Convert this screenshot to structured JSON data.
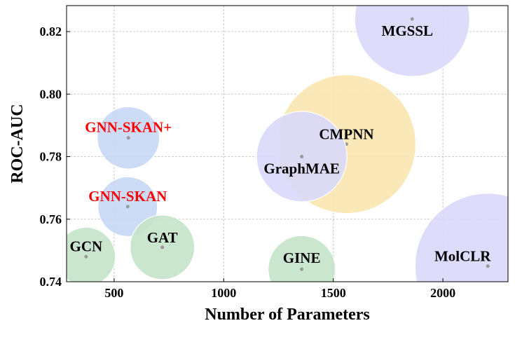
{
  "chart_data": {
    "type": "scatter",
    "title": "",
    "xlabel": "Number of Parameters",
    "ylabel": "ROC-AUC",
    "xlim": [
      283,
      2297
    ],
    "ylim": [
      0.74,
      0.8283
    ],
    "xticks": [
      500,
      1000,
      1500,
      2000
    ],
    "yticks": [
      0.74,
      0.76,
      0.78,
      0.8,
      0.82
    ],
    "xtick_labels": [
      "500",
      "1000",
      "1500",
      "2000"
    ],
    "ytick_labels": [
      "0.74",
      "0.76",
      "0.78",
      "0.80",
      "0.82"
    ],
    "grid": true,
    "points": [
      {
        "label": "GCN",
        "x": 372,
        "y": 0.748,
        "size": 17.6,
        "color": "#c5e3c9",
        "label_color": "#000000"
      },
      {
        "label": "GNN-SKAN",
        "x": 562,
        "y": 0.764,
        "size": 18.1,
        "color": "#c6d7f5",
        "label_color": "#ff0000"
      },
      {
        "label": "GNN-SKAN+",
        "x": 565,
        "y": 0.786,
        "size": 19.8,
        "color": "#c6d7f5",
        "label_color": "#ff0000"
      },
      {
        "label": "GAT",
        "x": 720,
        "y": 0.751,
        "size": 21.2,
        "color": "#c5e3c9",
        "label_color": "#000000"
      },
      {
        "label": "GINE",
        "x": 1356,
        "y": 0.744,
        "size": 23.0,
        "color": "#c5e3c9",
        "label_color": "#000000"
      },
      {
        "label": "CMPNN",
        "x": 1560,
        "y": 0.784,
        "size": 98.0,
        "color": "#f9e6b0",
        "label_color": "#000000"
      },
      {
        "label": "GraphMAE",
        "x": 1356,
        "y": 0.78,
        "size": 41.6,
        "color": "#d9d8fa",
        "label_color": "#000000"
      },
      {
        "label": "MGSSL",
        "x": 1860,
        "y": 0.824,
        "size": 67.2,
        "color": "#d9d8fa",
        "label_color": "#000000"
      },
      {
        "label": "MolCLR",
        "x": 2205,
        "y": 0.745,
        "size": 108.0,
        "color": "#d9d8fa",
        "label_color": "#000000"
      }
    ]
  }
}
